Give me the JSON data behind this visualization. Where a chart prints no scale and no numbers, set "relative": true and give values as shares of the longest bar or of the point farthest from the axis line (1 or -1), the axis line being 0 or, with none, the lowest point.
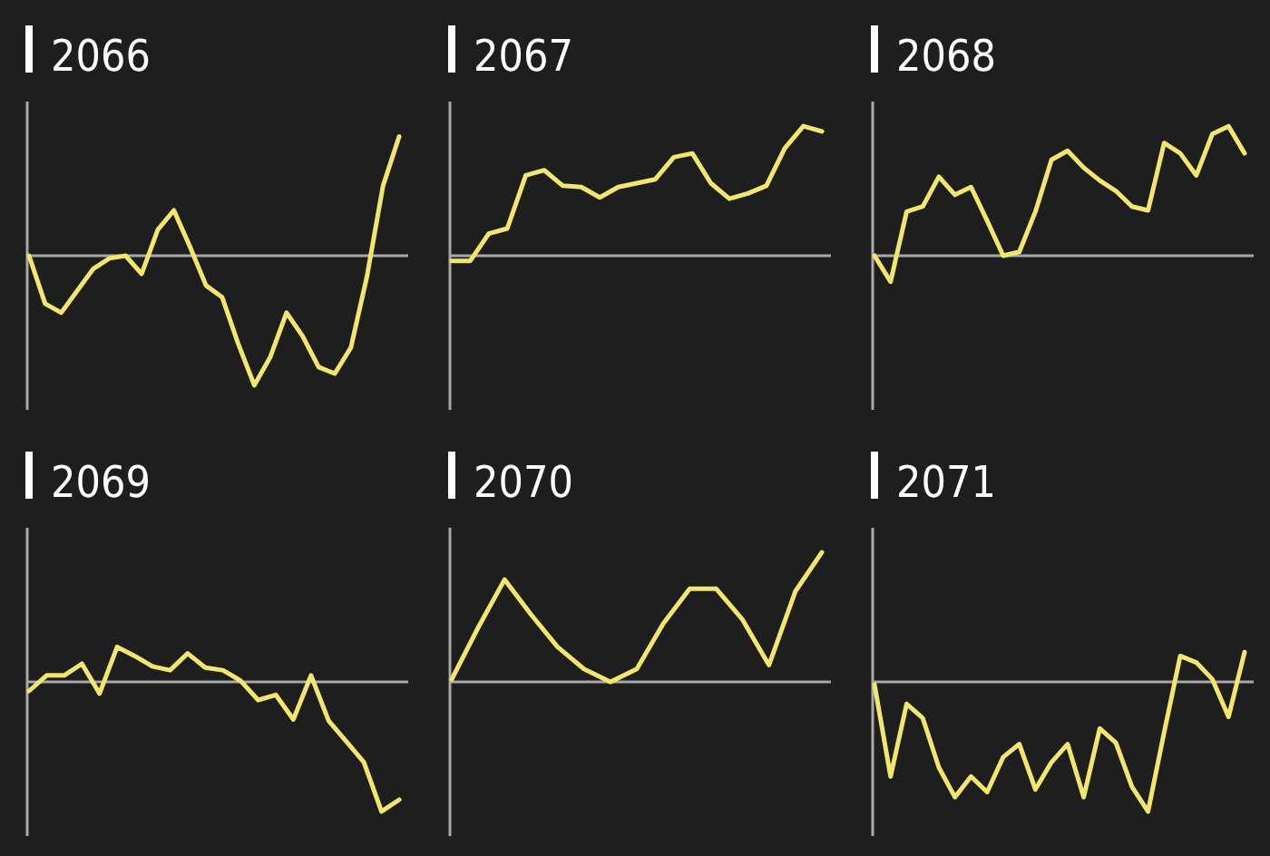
{
  "chart_data": [
    {
      "type": "line",
      "title": "2066",
      "relative": true,
      "categories": [
        null,
        null,
        null,
        null,
        null,
        null,
        null,
        null,
        null,
        null,
        null,
        null,
        null,
        null,
        null,
        null,
        null,
        null,
        null,
        null,
        null,
        null,
        null,
        null
      ],
      "series": [
        {
          "color": "#f2e66b",
          "values": [
            0,
            -0.37,
            -0.44,
            -0.27,
            -0.1,
            -0.02,
            0,
            -0.14,
            0.2,
            0.35,
            0.07,
            -0.23,
            -0.32,
            -0.68,
            -1,
            -0.78,
            -0.44,
            -0.62,
            -0.86,
            -0.91,
            -0.71,
            -0.16,
            0.54,
            0.92
          ]
        }
      ]
    },
    {
      "type": "line",
      "title": "2067",
      "relative": true,
      "categories": [
        null,
        null,
        null,
        null,
        null,
        null,
        null,
        null,
        null,
        null,
        null,
        null,
        null,
        null,
        null,
        null,
        null,
        null,
        null,
        null,
        null
      ],
      "series": [
        {
          "color": "#f2e66b",
          "values": [
            -0.04,
            -0.04,
            0.17,
            0.21,
            0.62,
            0.66,
            0.54,
            0.53,
            0.45,
            0.53,
            0.56,
            0.59,
            0.76,
            0.79,
            0.56,
            0.44,
            0.48,
            0.54,
            0.83,
            1,
            0.96
          ]
        }
      ]
    },
    {
      "type": "line",
      "title": "2068",
      "relative": true,
      "categories": [
        null,
        null,
        null,
        null,
        null,
        null,
        null,
        null,
        null,
        null,
        null,
        null,
        null,
        null,
        null,
        null,
        null,
        null,
        null,
        null,
        null,
        null,
        null,
        null
      ],
      "series": [
        {
          "color": "#f2e66b",
          "values": [
            0,
            -0.2,
            0.34,
            0.38,
            0.61,
            0.47,
            0.53,
            0.27,
            0,
            0.03,
            0.34,
            0.74,
            0.81,
            0.68,
            0.58,
            0.5,
            0.38,
            0.35,
            0.87,
            0.79,
            0.62,
            0.94,
            1,
            0.79
          ]
        }
      ]
    },
    {
      "type": "line",
      "title": "2069",
      "relative": true,
      "categories": [
        null,
        null,
        null,
        null,
        null,
        null,
        null,
        null,
        null,
        null,
        null,
        null,
        null,
        null,
        null,
        null,
        null,
        null,
        null,
        null,
        null,
        null
      ],
      "series": [
        {
          "color": "#f2e66b",
          "values": [
            -0.07,
            0.05,
            0.05,
            0.14,
            -0.09,
            0.27,
            0.2,
            0.12,
            0.09,
            0.22,
            0.11,
            0.09,
            0.01,
            -0.14,
            -0.1,
            -0.29,
            0.05,
            -0.3,
            -0.46,
            -0.62,
            -1,
            -0.91
          ]
        }
      ]
    },
    {
      "type": "line",
      "title": "2070",
      "relative": true,
      "categories": [
        null,
        null,
        null,
        null,
        null,
        null,
        null,
        null,
        null,
        null,
        null,
        null,
        null,
        null,
        null
      ],
      "series": [
        {
          "color": "#f2e66b",
          "values": [
            0.02,
            0.42,
            0.79,
            0.52,
            0.27,
            0.1,
            0,
            0.1,
            0.45,
            0.72,
            0.72,
            0.48,
            0.13,
            0.7,
            1
          ]
        }
      ]
    },
    {
      "type": "line",
      "title": "2071",
      "relative": true,
      "categories": [
        null,
        null,
        null,
        null,
        null,
        null,
        null,
        null,
        null,
        null,
        null,
        null,
        null,
        null,
        null,
        null,
        null,
        null,
        null,
        null,
        null,
        null,
        null,
        null
      ],
      "series": [
        {
          "color": "#f2e66b",
          "values": [
            -0.02,
            -0.73,
            -0.17,
            -0.28,
            -0.66,
            -0.89,
            -0.73,
            -0.85,
            -0.58,
            -0.48,
            -0.83,
            -0.62,
            -0.48,
            -0.89,
            -0.36,
            -0.47,
            -0.81,
            -1,
            -0.39,
            0.2,
            0.15,
            0.02,
            -0.27,
            0.23
          ]
        }
      ]
    }
  ]
}
